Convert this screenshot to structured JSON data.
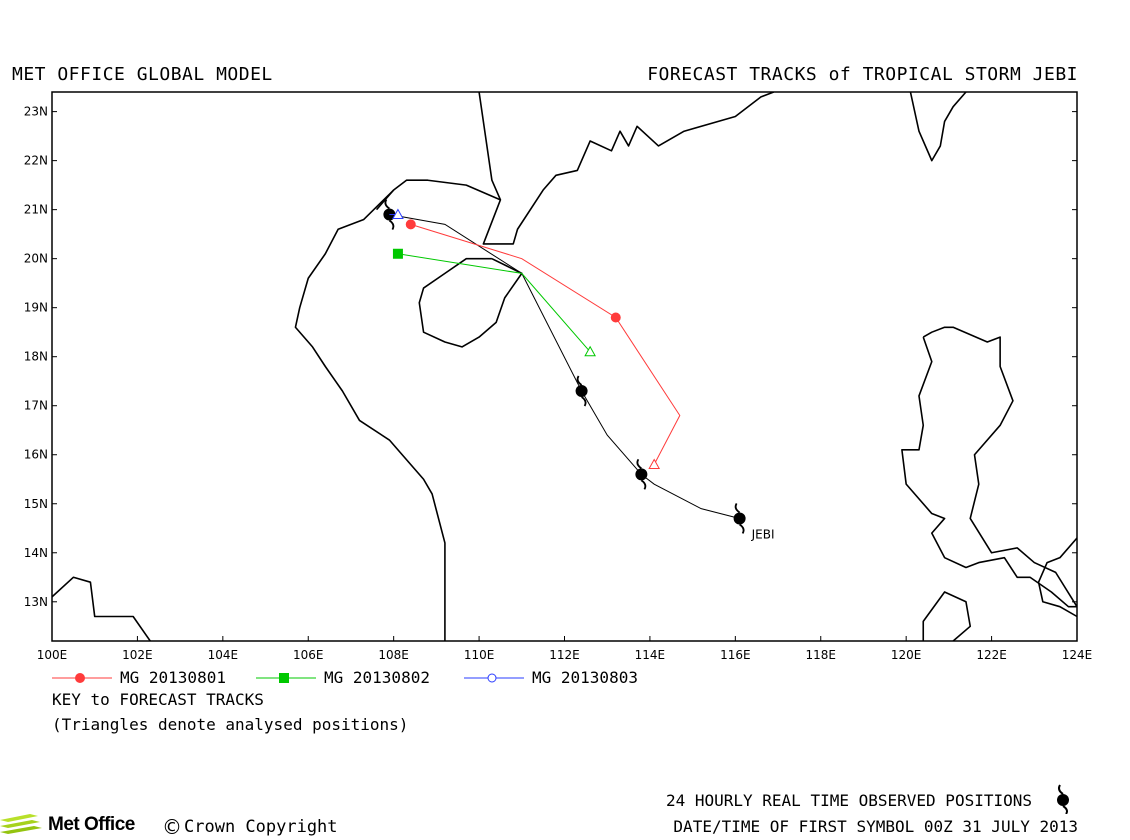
{
  "header": {
    "left_title": "MET OFFICE GLOBAL MODEL",
    "right_title": "FORECAST TRACKS of TROPICAL STORM JEBI"
  },
  "axes": {
    "lon_ticks": [
      "100E",
      "102E",
      "104E",
      "106E",
      "108E",
      "110E",
      "112E",
      "114E",
      "116E",
      "118E",
      "120E",
      "122E",
      "124E"
    ],
    "lat_ticks": [
      "13N",
      "14N",
      "15N",
      "16N",
      "17N",
      "18N",
      "19N",
      "20N",
      "21N",
      "22N",
      "23N"
    ],
    "lon_range": [
      100,
      124
    ],
    "lat_range": [
      12.2,
      23.4
    ]
  },
  "storm": {
    "name": "JEBI",
    "observed_positions": [
      {
        "lon": 116.1,
        "lat": 14.7
      },
      {
        "lon": 113.8,
        "lat": 15.6
      },
      {
        "lon": 112.4,
        "lat": 17.3
      },
      {
        "lon": 107.9,
        "lat": 20.9
      }
    ],
    "observed_track": [
      [
        116.1,
        14.7
      ],
      [
        115.2,
        14.9
      ],
      [
        114.1,
        15.4
      ],
      [
        113.8,
        15.6
      ],
      [
        113.0,
        16.4
      ],
      [
        112.4,
        17.3
      ],
      [
        111.0,
        19.7
      ],
      [
        109.2,
        20.7
      ],
      [
        107.9,
        20.9
      ]
    ]
  },
  "forecasts": [
    {
      "name": "MG 20130801",
      "color": "#ff3b3b",
      "marker": "circle",
      "points": [
        [
          114.1,
          15.8
        ],
        [
          114.7,
          16.8
        ],
        [
          113.2,
          18.8
        ],
        [
          111.0,
          20.0
        ],
        [
          108.4,
          20.7
        ]
      ],
      "analysed_index": 0,
      "marker_indices": [
        2,
        4
      ]
    },
    {
      "name": "MG 20130802",
      "color": "#00c800",
      "marker": "square",
      "points": [
        [
          112.6,
          18.1
        ],
        [
          111.0,
          19.7
        ],
        [
          108.1,
          20.1
        ]
      ],
      "analysed_index": 0,
      "marker_indices": [
        2
      ]
    },
    {
      "name": "MG 20130803",
      "color": "#2a3cff",
      "marker": "open-circle",
      "points": [
        [
          108.1,
          20.9
        ],
        [
          107.9,
          20.9
        ]
      ],
      "analysed_index": 0,
      "marker_indices": []
    }
  ],
  "coastlines": [
    [
      [
        100,
        13.1
      ],
      [
        100.5,
        13.5
      ],
      [
        100.9,
        13.4
      ],
      [
        101.0,
        12.7
      ],
      [
        101.9,
        12.7
      ],
      [
        102.3,
        12.2
      ]
    ],
    [
      [
        110.0,
        23.4
      ],
      [
        110.3,
        21.6
      ],
      [
        110.5,
        21.2
      ],
      [
        110.1,
        20.3
      ],
      [
        110.8,
        20.3
      ],
      [
        110.9,
        20.6
      ],
      [
        111.5,
        21.4
      ],
      [
        111.8,
        21.7
      ],
      [
        112.3,
        21.8
      ],
      [
        112.6,
        22.4
      ],
      [
        113.1,
        22.2
      ],
      [
        113.3,
        22.6
      ],
      [
        113.5,
        22.3
      ],
      [
        113.7,
        22.7
      ],
      [
        114.2,
        22.3
      ],
      [
        114.8,
        22.6
      ],
      [
        116.0,
        22.9
      ],
      [
        116.6,
        23.3
      ],
      [
        116.9,
        23.4
      ]
    ],
    [
      [
        110.5,
        21.2
      ],
      [
        109.7,
        21.5
      ],
      [
        108.8,
        21.6
      ],
      [
        108.3,
        21.6
      ],
      [
        108.0,
        21.4
      ],
      [
        107.6,
        21.0
      ]
    ],
    [
      [
        108.0,
        21.4
      ],
      [
        107.3,
        20.8
      ],
      [
        106.7,
        20.6
      ],
      [
        106.4,
        20.1
      ],
      [
        106.0,
        19.6
      ],
      [
        105.8,
        19.0
      ],
      [
        105.7,
        18.6
      ],
      [
        106.1,
        18.2
      ],
      [
        106.4,
        17.8
      ],
      [
        106.8,
        17.3
      ],
      [
        107.2,
        16.7
      ],
      [
        107.9,
        16.3
      ],
      [
        108.2,
        16.0
      ],
      [
        108.7,
        15.5
      ],
      [
        108.9,
        15.2
      ],
      [
        109.2,
        14.2
      ],
      [
        109.2,
        13.7
      ],
      [
        109.2,
        13.0
      ],
      [
        109.2,
        12.2
      ]
    ],
    [
      [
        110.3,
        20.0
      ],
      [
        111.0,
        19.7
      ],
      [
        110.6,
        19.2
      ],
      [
        110.4,
        18.7
      ],
      [
        110.0,
        18.4
      ],
      [
        109.6,
        18.2
      ],
      [
        109.2,
        18.3
      ],
      [
        108.7,
        18.5
      ],
      [
        108.6,
        19.1
      ],
      [
        108.7,
        19.4
      ],
      [
        109.2,
        19.7
      ],
      [
        109.7,
        20.0
      ],
      [
        110.3,
        20.0
      ]
    ],
    [
      [
        120.1,
        23.4
      ],
      [
        120.3,
        22.6
      ],
      [
        120.6,
        22.0
      ],
      [
        120.8,
        22.3
      ],
      [
        120.9,
        22.8
      ],
      [
        121.1,
        23.1
      ],
      [
        121.4,
        23.4
      ]
    ],
    [
      [
        120.4,
        18.4
      ],
      [
        120.6,
        18.5
      ],
      [
        120.9,
        18.6
      ],
      [
        121.1,
        18.6
      ],
      [
        121.9,
        18.3
      ],
      [
        122.2,
        18.4
      ],
      [
        122.2,
        17.8
      ],
      [
        122.5,
        17.1
      ],
      [
        122.2,
        16.6
      ],
      [
        121.6,
        16.0
      ],
      [
        121.7,
        15.4
      ],
      [
        121.5,
        14.7
      ],
      [
        122.0,
        14.0
      ],
      [
        122.6,
        14.1
      ],
      [
        123.0,
        13.8
      ],
      [
        123.5,
        13.6
      ],
      [
        124.0,
        12.9
      ],
      [
        123.8,
        12.9
      ],
      [
        123.4,
        13.2
      ],
      [
        122.9,
        13.5
      ],
      [
        122.6,
        13.5
      ],
      [
        122.3,
        13.9
      ],
      [
        121.7,
        13.8
      ],
      [
        121.4,
        13.7
      ],
      [
        120.9,
        13.9
      ],
      [
        120.6,
        14.4
      ],
      [
        120.9,
        14.7
      ],
      [
        120.6,
        14.8
      ],
      [
        120.0,
        15.4
      ],
      [
        119.9,
        16.1
      ],
      [
        120.3,
        16.1
      ],
      [
        120.4,
        16.6
      ],
      [
        120.3,
        17.2
      ],
      [
        120.6,
        17.9
      ],
      [
        120.4,
        18.4
      ]
    ],
    [
      [
        120.4,
        12.2
      ],
      [
        120.4,
        12.6
      ],
      [
        120.9,
        13.2
      ],
      [
        121.4,
        13.0
      ],
      [
        121.5,
        12.5
      ],
      [
        121.1,
        12.2
      ]
    ],
    [
      [
        124.0,
        14.3
      ],
      [
        123.6,
        13.9
      ],
      [
        123.3,
        13.8
      ],
      [
        123.1,
        13.4
      ],
      [
        123.2,
        13.0
      ],
      [
        123.6,
        12.9
      ],
      [
        124.0,
        12.7
      ]
    ]
  ],
  "legend": {
    "key_title": "KEY to FORECAST TRACKS",
    "key_note": "(Triangles denote analysed positions)"
  },
  "footer": {
    "observed_note": "24 HOURLY REAL TIME OBSERVED POSITIONS",
    "first_symbol": "DATE/TIME OF FIRST SYMBOL 00Z 31 JULY 2013",
    "logo_text": "Met Office",
    "copyright": "Crown Copyright",
    "copyright_symbol": "©"
  }
}
